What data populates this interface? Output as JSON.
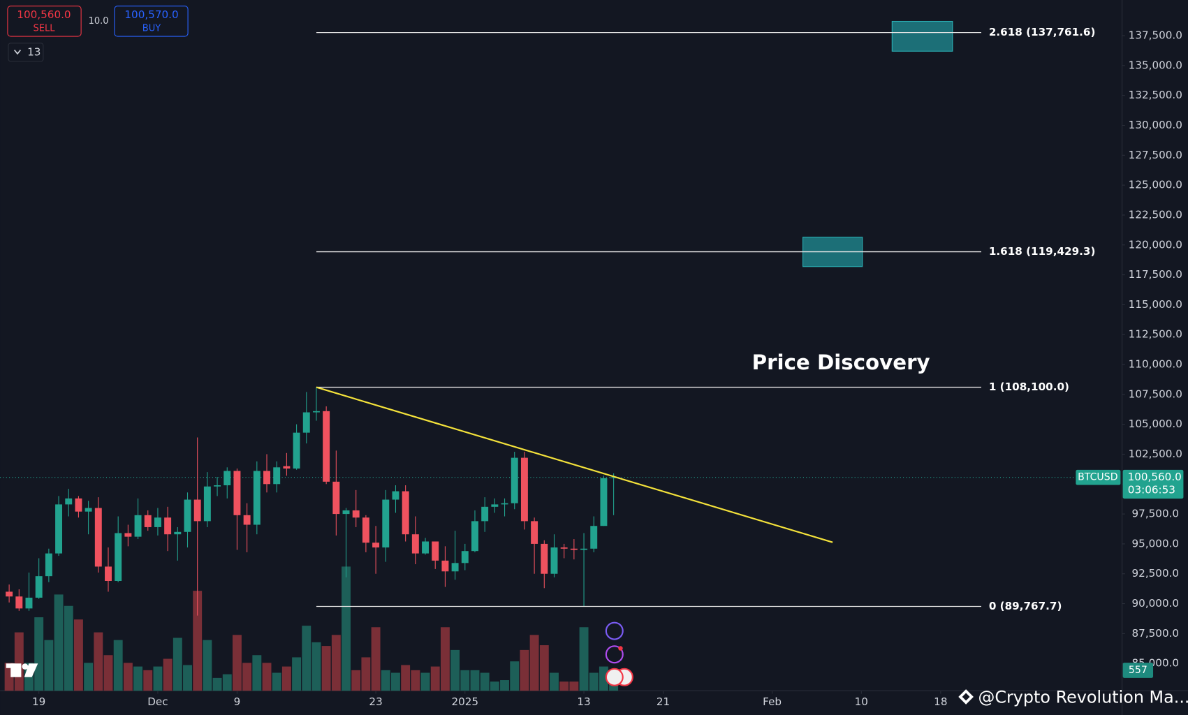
{
  "chart_data": {
    "type": "candlestick",
    "x": [
      0,
      1,
      2,
      3,
      4,
      5,
      6,
      7,
      8,
      9,
      10,
      11,
      12,
      13,
      14,
      15,
      16,
      17,
      18,
      19,
      20,
      21,
      22,
      23,
      24,
      25,
      26,
      27,
      28,
      29,
      30,
      31,
      32,
      33,
      34,
      35,
      36,
      37,
      38,
      39,
      40,
      41,
      42,
      43,
      44,
      45,
      46,
      47,
      48,
      49,
      50,
      51,
      52,
      53,
      54,
      55,
      56,
      57,
      58,
      59,
      60,
      61
    ],
    "open": [
      91000,
      90600,
      89600,
      90500,
      92300,
      94200,
      98300,
      98800,
      97700,
      98000,
      93100,
      91900,
      95900,
      95600,
      97400,
      96400,
      97200,
      95800,
      96000,
      98700,
      96900,
      99800,
      99900,
      101100,
      97400,
      96600,
      101100,
      100000,
      101500,
      101300,
      104300,
      106000,
      106100,
      100200,
      97500,
      97800,
      97200,
      95100,
      94700,
      98700,
      99400,
      95800,
      94200,
      95200,
      93600,
      92700,
      93400,
      94400,
      96900,
      98100,
      98300,
      98400,
      102200,
      96900,
      95000,
      92500,
      94700,
      94600,
      94500,
      94600,
      96500,
      100500
    ],
    "high": [
      91600,
      91200,
      92600,
      93800,
      94600,
      99000,
      99600,
      99000,
      98600,
      98900,
      94700,
      97300,
      96600,
      98800,
      97800,
      98000,
      98100,
      96400,
      99300,
      103900,
      101000,
      100600,
      101400,
      101300,
      98400,
      101900,
      102500,
      101900,
      102600,
      105000,
      107700,
      108100,
      106500,
      102800,
      98000,
      99500,
      97400,
      96500,
      99500,
      99900,
      99900,
      97300,
      95500,
      95200,
      94800,
      96100,
      95000,
      97800,
      98900,
      98800,
      98800,
      102700,
      102700,
      97200,
      95300,
      95800,
      95000,
      95400,
      95900,
      97300,
      100700,
      100900
    ],
    "low": [
      90100,
      89400,
      89400,
      90400,
      91800,
      94000,
      97300,
      97200,
      95800,
      92600,
      91000,
      91800,
      94800,
      95400,
      96100,
      95700,
      94400,
      93600,
      94700,
      89000,
      96400,
      99000,
      98800,
      94500,
      94300,
      95800,
      99300,
      99300,
      100700,
      101200,
      103400,
      105300,
      100000,
      95700,
      92200,
      96400,
      94300,
      92500,
      93500,
      97600,
      95200,
      93300,
      94100,
      92900,
      91400,
      92000,
      92800,
      94300,
      96000,
      97600,
      97300,
      97900,
      96200,
      92500,
      91300,
      92200,
      93800,
      93700,
      89800,
      94300,
      96500,
      97400
    ],
    "close": [
      90600,
      89600,
      90500,
      92300,
      94200,
      98300,
      98800,
      97700,
      98000,
      93100,
      91900,
      95900,
      95600,
      97400,
      96400,
      97200,
      95800,
      96000,
      98700,
      96900,
      99800,
      99900,
      101100,
      97400,
      96600,
      101100,
      100000,
      101400,
      101300,
      104300,
      106000,
      106100,
      100200,
      97500,
      97800,
      97200,
      95100,
      94700,
      98700,
      99400,
      95800,
      94200,
      95200,
      93600,
      92700,
      93400,
      94400,
      96900,
      98100,
      98300,
      98400,
      102200,
      96900,
      95000,
      92500,
      94700,
      94600,
      94500,
      94600,
      96500,
      100500,
      100560
    ],
    "volume": [
      760,
      1590,
      760,
      2000,
      1380,
      2620,
      2310,
      1940,
      760,
      1590,
      970,
      1380,
      760,
      660,
      560,
      660,
      870,
      1440,
      700,
      2720,
      1380,
      350,
      450,
      1520,
      760,
      970,
      760,
      490,
      660,
      910,
      1770,
      1320,
      1220,
      1520,
      3380,
      560,
      910,
      1730,
      560,
      490,
      700,
      560,
      490,
      660,
      1730,
      1110,
      560,
      560,
      490,
      250,
      290,
      800,
      1110,
      1520,
      1240,
      490,
      250,
      250,
      1730,
      490,
      660,
      557
    ],
    "vlim": [
      0,
      18800
    ],
    "up_color": "#22a38f",
    "down_color": "#f0525f",
    "up_volume_color": "#1d5f58",
    "down_volume_color": "#7a2f37",
    "xlim": [
      -0.92,
      112.23
    ],
    "xticks": [
      {
        "value": 3,
        "label": "19"
      },
      {
        "value": 15,
        "label": "Dec"
      },
      {
        "value": 23,
        "label": "9"
      },
      {
        "value": 37,
        "label": "23"
      },
      {
        "value": 46,
        "label": "2025"
      },
      {
        "value": 58,
        "label": "13"
      },
      {
        "value": 66,
        "label": "21"
      },
      {
        "value": 77,
        "label": "Feb"
      },
      {
        "value": 86,
        "label": "10"
      },
      {
        "value": 94,
        "label": "18"
      }
    ],
    "ylim": [
      82716,
      140482
    ],
    "yticks": [
      {
        "value": 85000,
        "label": "85,000.0"
      },
      {
        "value": 87500,
        "label": "87,500.0"
      },
      {
        "value": 90000,
        "label": "90,000.0"
      },
      {
        "value": 92500,
        "label": "92,500.0"
      },
      {
        "value": 95000,
        "label": "95,000.0"
      },
      {
        "value": 97500,
        "label": "97,500.0"
      },
      {
        "value": 100000,
        "label": "100,000.0"
      },
      {
        "value": 102500,
        "label": "102,500.0"
      },
      {
        "value": 105000,
        "label": "105,000.0"
      },
      {
        "value": 107500,
        "label": "107,500.0"
      },
      {
        "value": 110000,
        "label": "110,000.0"
      },
      {
        "value": 112500,
        "label": "112,500.0"
      },
      {
        "value": 115000,
        "label": "115,000.0"
      },
      {
        "value": 117500,
        "label": "117,500.0"
      },
      {
        "value": 120000,
        "label": "120,000.0"
      },
      {
        "value": 122500,
        "label": "122,500.0"
      },
      {
        "value": 125000,
        "label": "125,000.0"
      },
      {
        "value": 127500,
        "label": "127,500.0"
      },
      {
        "value": 130000,
        "label": "130,000.0"
      },
      {
        "value": 132500,
        "label": "132,500.0"
      },
      {
        "value": 135000,
        "label": "135,000.0"
      },
      {
        "value": 137500,
        "label": "137,500.0"
      }
    ],
    "grid": false,
    "fib_range": [
      31,
      98.1
    ],
    "fib_levels": [
      {
        "value": 137761.6,
        "label": "2.618 (137,761.6)"
      },
      {
        "value": 119429.3,
        "label": "1.618 (119,429.3)"
      },
      {
        "value": 108100,
        "label": "1 (108,100.0)"
      },
      {
        "value": 89767.7,
        "label": "0 (89,767.7)"
      }
    ],
    "trendline": {
      "x": [
        31,
        83.1
      ],
      "y": [
        108100,
        95130
      ],
      "color": "#f5e33b"
    },
    "zones": [
      {
        "x": [
          89.1,
          95.2
        ],
        "y": [
          136200,
          138700
        ]
      },
      {
        "x": [
          80.1,
          86.1
        ],
        "y": [
          118190,
          120650
        ]
      }
    ],
    "zone_color": "#1e7f86",
    "annotation": "Price Discovery",
    "last_price": {
      "symbol": "BTCUSD",
      "value": 100560,
      "label": "100,560.0",
      "countdown": "03:06:53"
    }
  },
  "ui": {
    "sell_price": "100,560.0",
    "sell": "SELL",
    "spread": "10.0",
    "buy_price": "100,570.0",
    "buy": "BUY",
    "interval": "13",
    "watermark": "@Crypto Revolution Ma..."
  }
}
